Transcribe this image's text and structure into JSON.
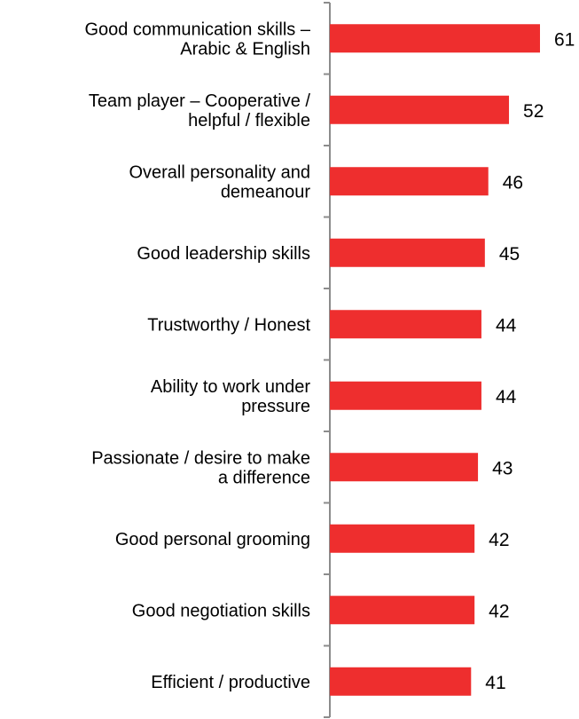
{
  "chart_data": {
    "type": "bar",
    "orientation": "horizontal",
    "categories": [
      [
        "Good communication skills –",
        "Arabic & English"
      ],
      [
        "Team player – Cooperative /",
        "helpful / flexible"
      ],
      [
        "Overall personality and",
        "demeanour"
      ],
      [
        "Good leadership skills"
      ],
      [
        "Trustworthy / Honest"
      ],
      [
        "Ability to work under",
        "pressure"
      ],
      [
        "Passionate / desire to make",
        "a difference"
      ],
      [
        "Good personal grooming"
      ],
      [
        "Good negotiation skills"
      ],
      [
        "Efficient / productive"
      ]
    ],
    "values": [
      61,
      52,
      46,
      45,
      44,
      44,
      43,
      42,
      42,
      41
    ],
    "title": "",
    "xlabel": "",
    "ylabel": "",
    "xlim": [
      0,
      66
    ],
    "grid": false,
    "legend": "none",
    "bar_color": "#ee2e2e",
    "axis_color": "#8c8c8c",
    "text_color": "#000000"
  }
}
